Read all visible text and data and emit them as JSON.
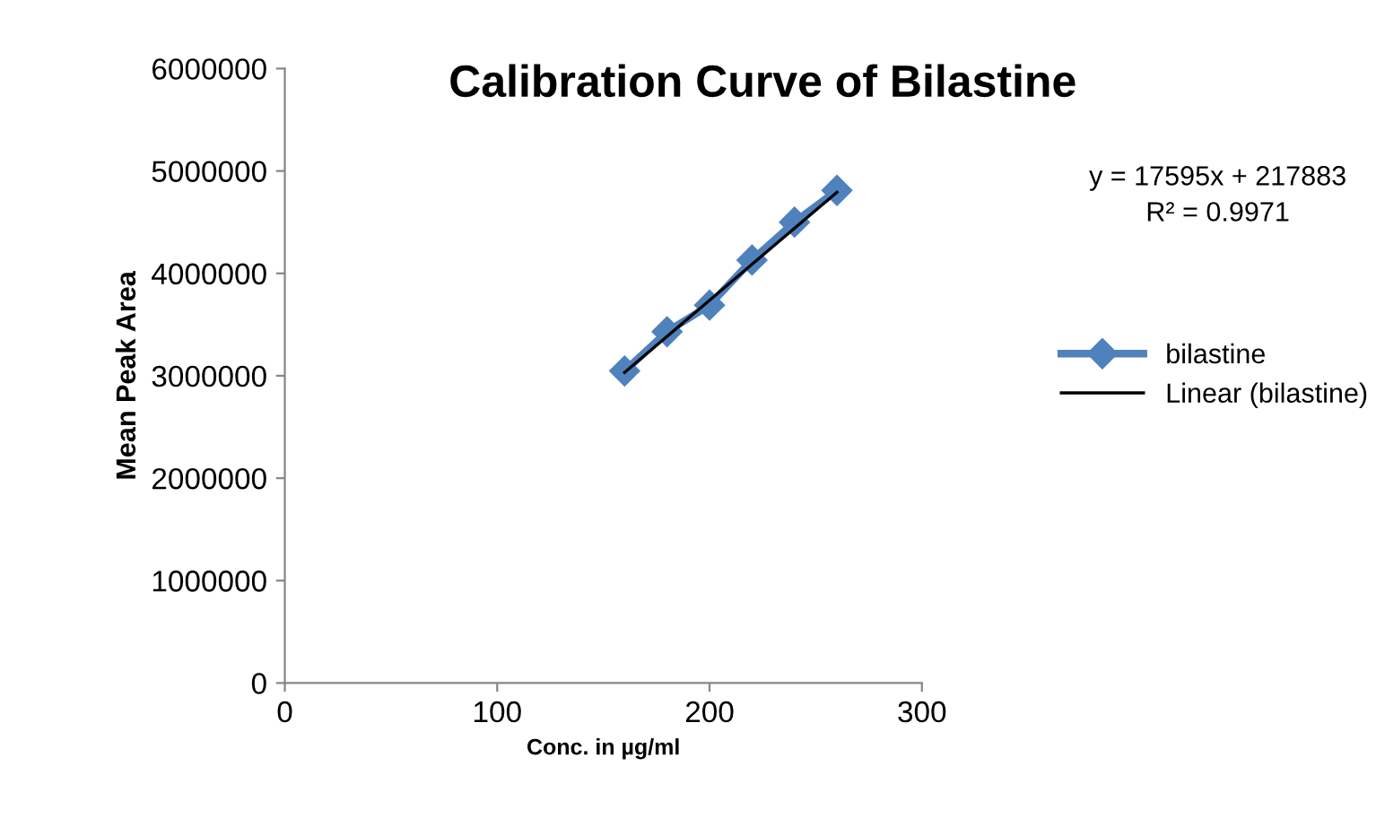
{
  "chart_data": {
    "type": "line",
    "title": "Calibration Curve of Bilastine",
    "xlabel": "Conc. in µg/ml",
    "ylabel": "Mean Peak Area",
    "x": [
      160,
      180,
      200,
      220,
      240,
      260
    ],
    "series": [
      {
        "name": "bilastine",
        "color": "#4f81bd",
        "values": [
          3047000,
          3430000,
          3690000,
          4130000,
          4500000,
          4810000
        ],
        "marker": "diamond"
      },
      {
        "name": "Linear (bilastine)",
        "color": "#000000",
        "type": "line",
        "x": [
          160,
          260
        ],
        "values": [
          3033083,
          4792583
        ],
        "marker": "none"
      }
    ],
    "annotations": [
      "y = 17595x + 217883",
      "R² = 0.9971"
    ],
    "xlim": [
      0,
      300
    ],
    "xticks": [
      0,
      100,
      200,
      300
    ],
    "ylim": [
      0,
      6000000
    ],
    "yticks": [
      0,
      1000000,
      2000000,
      3000000,
      4000000,
      5000000,
      6000000
    ],
    "grid": false,
    "legend": "right"
  }
}
